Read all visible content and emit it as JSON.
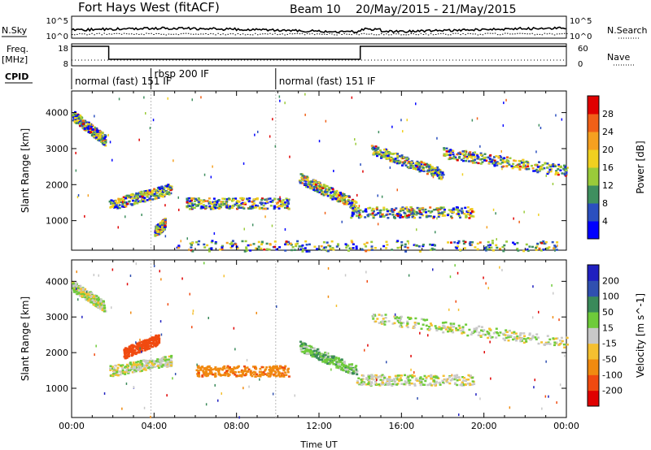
{
  "header": {
    "station": "Fort Hays West (fitACF)",
    "beam": "Beam 10",
    "date_range": "20/May/2015 - 21/May/2015"
  },
  "side_labels": {
    "nsky": "N.Sky",
    "nsearch": "N.Search",
    "freq": "Freq.",
    "freq_unit": "[MHz]",
    "nave": "Nave",
    "cpid": "CPID"
  },
  "noise_axis": {
    "left_ticks": [
      "10^5",
      "10^0"
    ],
    "right_ticks": [
      "10^5",
      "10^0"
    ]
  },
  "freq_axis": {
    "left_ticks": [
      "18",
      "8"
    ],
    "right_ticks": [
      "60",
      "0"
    ]
  },
  "cpid_segments": [
    {
      "label": "normal (fast) 151 IF",
      "start_h": 0,
      "end_h": 3.85
    },
    {
      "label": "rbsp 200 IF",
      "start_h": 3.85,
      "end_h": 9.9
    },
    {
      "label": "normal (fast) 151 IF",
      "start_h": 9.9,
      "end_h": 24
    }
  ],
  "freq_trace": [
    {
      "start_h": 0,
      "end_h": 1.8,
      "level": "high"
    },
    {
      "start_h": 1.8,
      "end_h": 14.0,
      "level": "low"
    },
    {
      "start_h": 14.0,
      "end_h": 24,
      "level": "high"
    }
  ],
  "chart_data": [
    {
      "type": "heatmap",
      "name": "power",
      "ylabel": "Slant Range [km]",
      "xlabel": "Time UT",
      "xlim": [
        0,
        24
      ],
      "ylim": [
        180,
        4600
      ],
      "yticks": [
        1000,
        2000,
        3000,
        4000
      ],
      "colorbar": {
        "label": "Power [dB]",
        "ticks": [
          "28",
          "24",
          "20",
          "16",
          "12",
          "8",
          "4"
        ],
        "colors": [
          "#0000ff",
          "#2b4fbf",
          "#3f8f5f",
          "#9acb3a",
          "#f0d020",
          "#f5a020",
          "#f06018",
          "#e00000"
        ]
      },
      "features": [
        {
          "x": [
            0.0,
            1.6
          ],
          "y": [
            3950,
            3250
          ]
        },
        {
          "x": [
            1.8,
            4.8
          ],
          "y": [
            1450,
            1900
          ]
        },
        {
          "x": [
            4.0,
            4.5
          ],
          "y": [
            700,
            950
          ]
        },
        {
          "x": [
            5.5,
            10.5
          ],
          "y": [
            1500,
            1500
          ]
        },
        {
          "x": [
            11.0,
            13.8
          ],
          "y": [
            2200,
            1450
          ]
        },
        {
          "x": [
            14.5,
            18.0
          ],
          "y": [
            3000,
            2300
          ]
        },
        {
          "x": [
            18.0,
            24.0
          ],
          "y": [
            2900,
            2400
          ]
        },
        {
          "x": [
            13.5,
            19.5
          ],
          "y": [
            1250,
            1250
          ]
        },
        {
          "x": [
            5.0,
            23.5
          ],
          "y": [
            320,
            320
          ]
        }
      ]
    },
    {
      "type": "heatmap",
      "name": "velocity",
      "ylabel": "Slant Range [km]",
      "xlabel": "Time UT",
      "xlim": [
        0,
        24
      ],
      "ylim": [
        180,
        4600
      ],
      "yticks": [
        1000,
        2000,
        3000,
        4000
      ],
      "xtick_labels": [
        "00:00",
        "04:00",
        "08:00",
        "12:00",
        "16:00",
        "20:00",
        "00:00"
      ],
      "colorbar": {
        "label": "Velocity [m s^-1]",
        "ticks": [
          "200",
          "100",
          "50",
          "15",
          "-15",
          "-50",
          "-100",
          "-200"
        ],
        "colors": [
          "#e00000",
          "#f04a10",
          "#f08a10",
          "#f5c030",
          "#c8c8c8",
          "#6ecb3a",
          "#3a8a5a",
          "#3050b0",
          "#2020c0"
        ]
      },
      "features": [
        {
          "x": [
            0.0,
            1.6
          ],
          "y": [
            3900,
            3300
          ],
          "v": 0
        },
        {
          "x": [
            1.8,
            4.8
          ],
          "y": [
            1500,
            1800
          ],
          "v": 0
        },
        {
          "x": [
            2.5,
            4.2
          ],
          "y": [
            2000,
            2400
          ],
          "v": -150
        },
        {
          "x": [
            6.0,
            10.5
          ],
          "y": [
            1500,
            1500
          ],
          "v": -80
        },
        {
          "x": [
            11.0,
            13.8
          ],
          "y": [
            2200,
            1500
          ],
          "v": 30
        },
        {
          "x": [
            14.5,
            24.0
          ],
          "y": [
            3000,
            2300
          ],
          "v": 0
        },
        {
          "x": [
            13.8,
            19.5
          ],
          "y": [
            1250,
            1250
          ],
          "v": 0
        }
      ]
    }
  ]
}
